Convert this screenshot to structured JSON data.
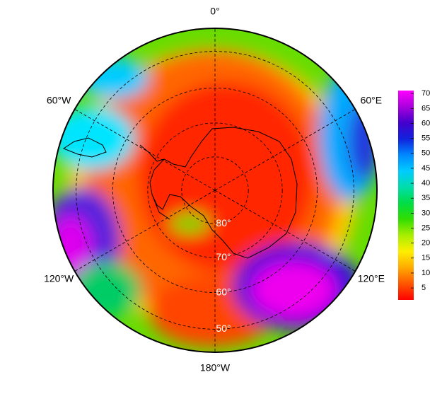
{
  "map": {
    "projection": "south-polar-stereographic",
    "lat_lim": 44,
    "longitudes": [
      {
        "value": 0,
        "label": "0°"
      },
      {
        "value": 60,
        "label": "60°E"
      },
      {
        "value": 120,
        "label": "120°E"
      },
      {
        "value": 180,
        "label": "180°W"
      },
      {
        "value": -120,
        "label": "120°W"
      },
      {
        "value": -60,
        "label": "60°W"
      }
    ],
    "latitudes": [
      {
        "value": 80,
        "label": "80°"
      },
      {
        "value": 70,
        "label": "70°"
      },
      {
        "value": 60,
        "label": "60°"
      },
      {
        "value": 50,
        "label": "50°"
      }
    ],
    "colorbar": {
      "lim": [
        1,
        71
      ],
      "ticks": [
        5,
        10,
        15,
        20,
        25,
        30,
        35,
        40,
        45,
        50,
        55,
        60,
        65,
        70
      ],
      "colors": [
        "#ff0000",
        "#ff5500",
        "#ffaa00",
        "#ffee00",
        "#aaee00",
        "#33dd00",
        "#00dd44",
        "#00ddaa",
        "#00ccff",
        "#0088ff",
        "#1122dd",
        "#4400cc",
        "#aa00dd",
        "#ff00ff"
      ]
    }
  }
}
